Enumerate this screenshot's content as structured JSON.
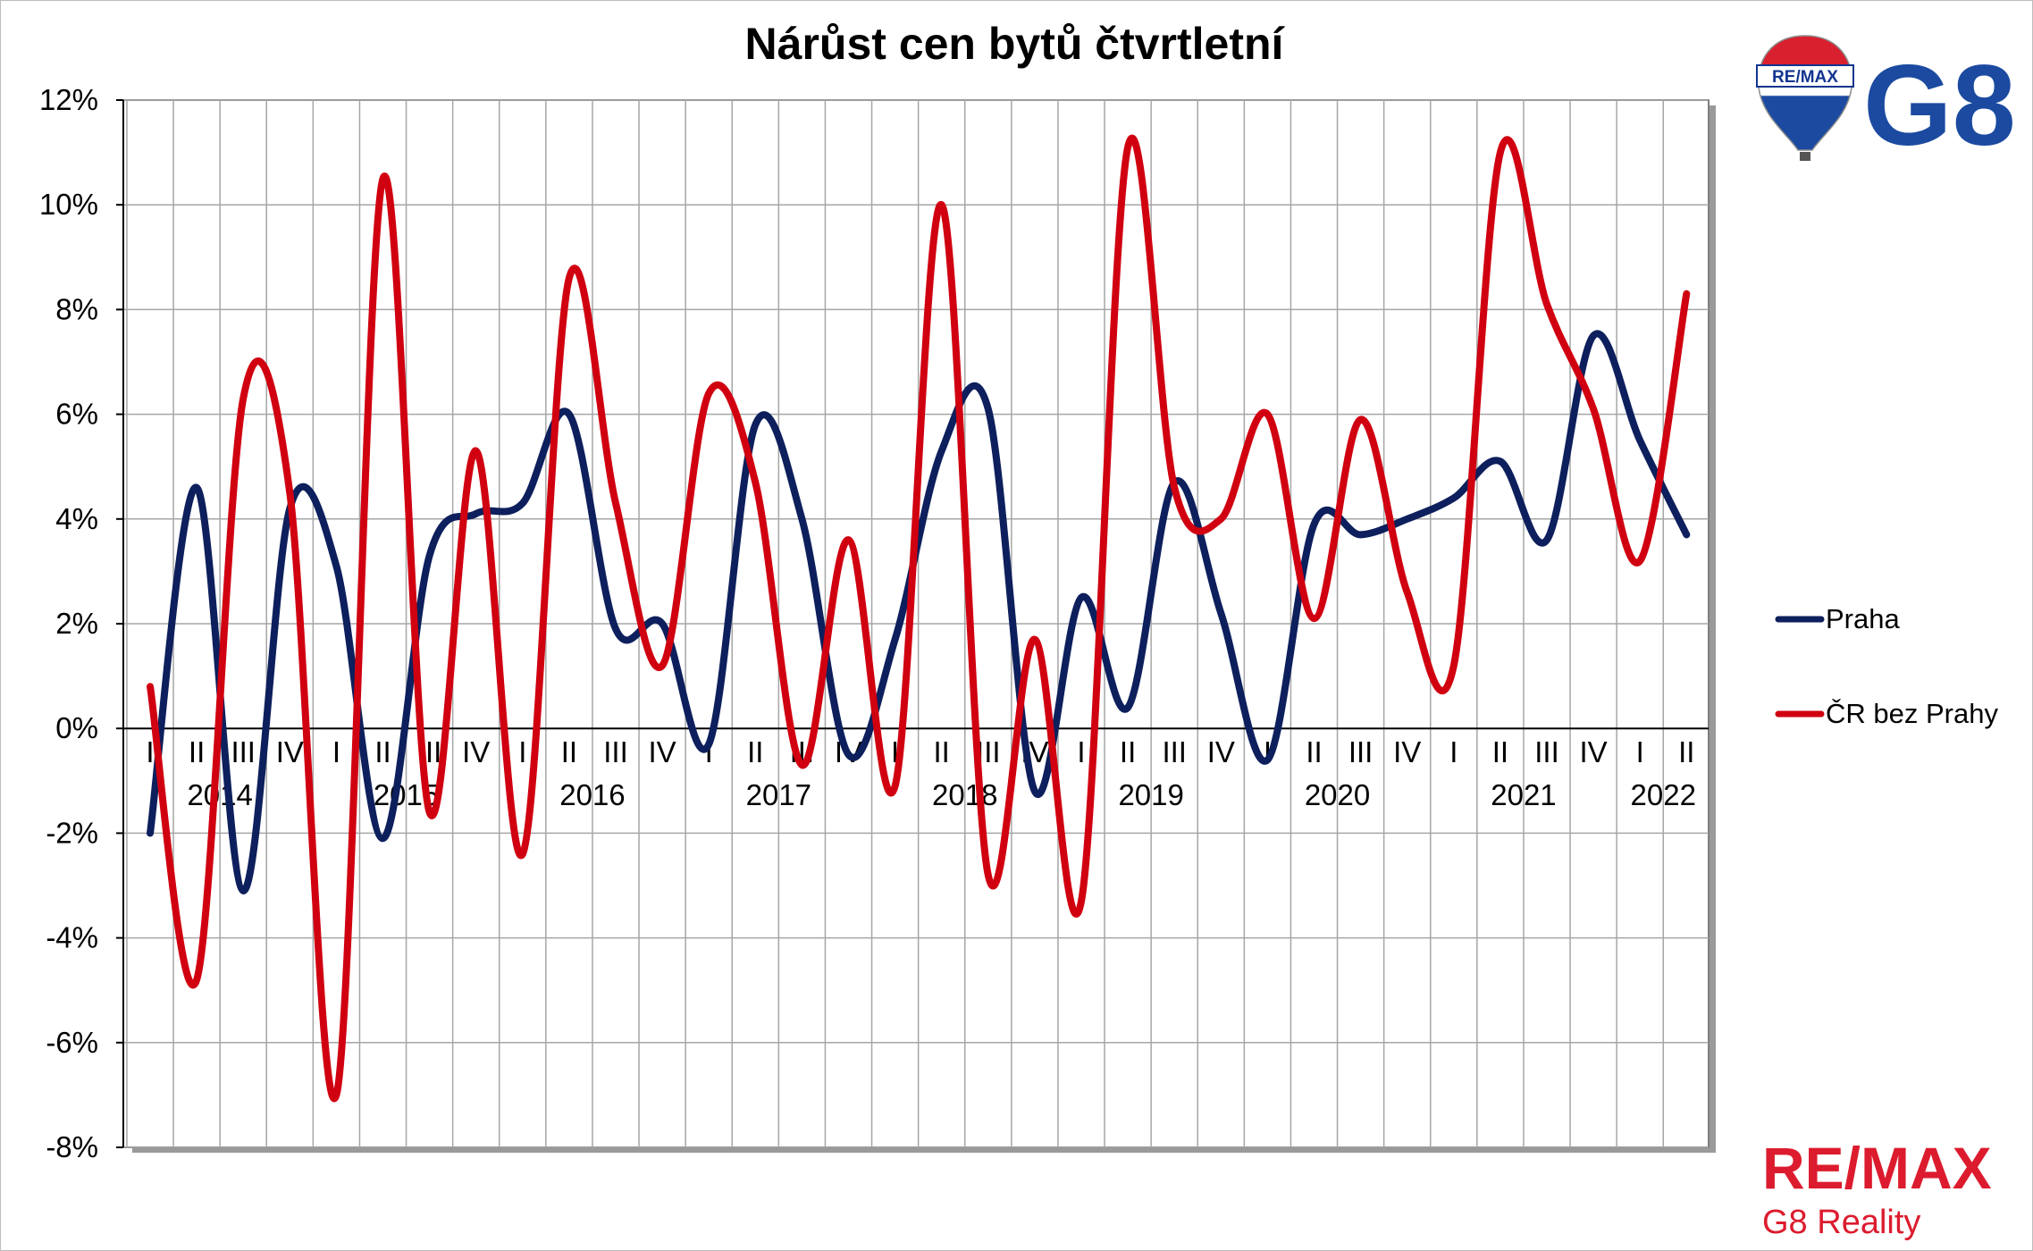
{
  "chart_data": {
    "type": "line",
    "title": "Nárůst cen bytů čtvrtletní",
    "xlabel": "",
    "ylabel": "",
    "ylim": [
      -0.08,
      0.12
    ],
    "yticks": [
      -0.08,
      -0.06,
      -0.04,
      -0.02,
      0,
      0.02,
      0.04,
      0.06,
      0.08,
      0.1,
      0.12
    ],
    "ytick_labels": [
      "-8%",
      "-6%",
      "-4%",
      "-2%",
      "0%",
      "2%",
      "4%",
      "6%",
      "8%",
      "10%",
      "12%"
    ],
    "grid": true,
    "legend_position": "right",
    "categories": [
      "I",
      "II",
      "III",
      "IV",
      "I",
      "II",
      "III",
      "IV",
      "I",
      "II",
      "III",
      "IV",
      "I",
      "II",
      "III",
      "IV",
      "I",
      "II",
      "III",
      "IV",
      "I",
      "II",
      "III",
      "IV",
      "I",
      "II",
      "III",
      "IV",
      "I",
      "II",
      "III",
      "IV",
      "I",
      "II"
    ],
    "years": [
      "2014",
      "2015",
      "2016",
      "2017",
      "2018",
      "2019",
      "2020",
      "2021",
      "2022"
    ],
    "series": [
      {
        "name": "Praha",
        "color": "#0d1f5c",
        "values": [
          -0.02,
          0.046,
          -0.031,
          0.042,
          0.031,
          -0.021,
          0.033,
          0.041,
          0.043,
          0.06,
          0.019,
          0.02,
          -0.003,
          0.058,
          0.04,
          -0.005,
          0.017,
          0.053,
          0.061,
          -0.012,
          0.025,
          0.004,
          0.047,
          0.022,
          -0.006,
          0.039,
          0.037,
          0.04,
          0.044,
          0.051,
          0.036,
          0.075,
          0.055,
          0.037
        ]
      },
      {
        "name": "ČR bez Prahy",
        "color": "#d00010",
        "values": [
          0.008,
          -0.048,
          0.063,
          0.045,
          -0.07,
          0.105,
          -0.016,
          0.053,
          -0.024,
          0.086,
          0.043,
          0.012,
          0.064,
          0.047,
          -0.007,
          0.036,
          -0.011,
          0.1,
          -0.028,
          0.017,
          -0.033,
          0.111,
          0.046,
          0.04,
          0.06,
          0.021,
          0.059,
          0.026,
          0.012,
          0.11,
          0.081,
          0.061,
          0.032,
          0.083
        ]
      }
    ]
  },
  "logos": {
    "balloon_text": "RE/MAX",
    "g8_text": "G8",
    "brand_text": "RE/MAX",
    "brand_subtext": "G8 Reality",
    "brand_color": "#dc1c2e",
    "blue_color": "#1b4aa0"
  }
}
